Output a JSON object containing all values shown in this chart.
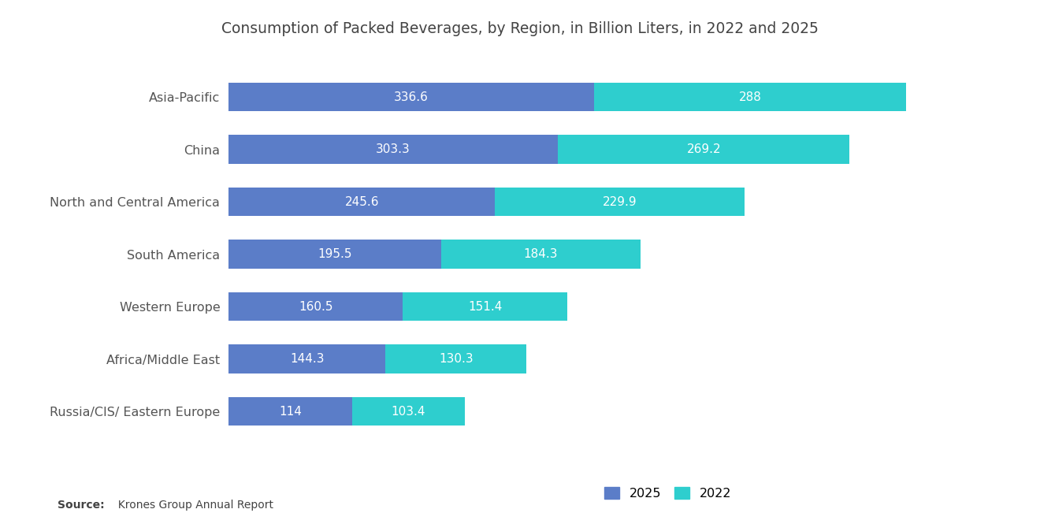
{
  "title": "Consumption of Packed Beverages, by Region, in Billion Liters, in 2022 and 2025",
  "categories": [
    "Russia/CIS/ Eastern Europe",
    "Africa/Middle East",
    "Western Europe",
    "South America",
    "North and Central America",
    "China",
    "Asia-Pacific"
  ],
  "values_2025": [
    114,
    144.3,
    160.5,
    195.5,
    245.6,
    303.3,
    336.6
  ],
  "values_2022": [
    103.4,
    130.3,
    151.4,
    184.3,
    229.9,
    269.2,
    288
  ],
  "color_2025": "#5B7DC8",
  "color_2022": "#2ECECE",
  "background_color": "#ffffff",
  "title_fontsize": 13.5,
  "bar_height": 0.55,
  "xlim": [
    0,
    700
  ],
  "source_bold": "Source:",
  "source_rest": "  Krones Group Annual Report"
}
